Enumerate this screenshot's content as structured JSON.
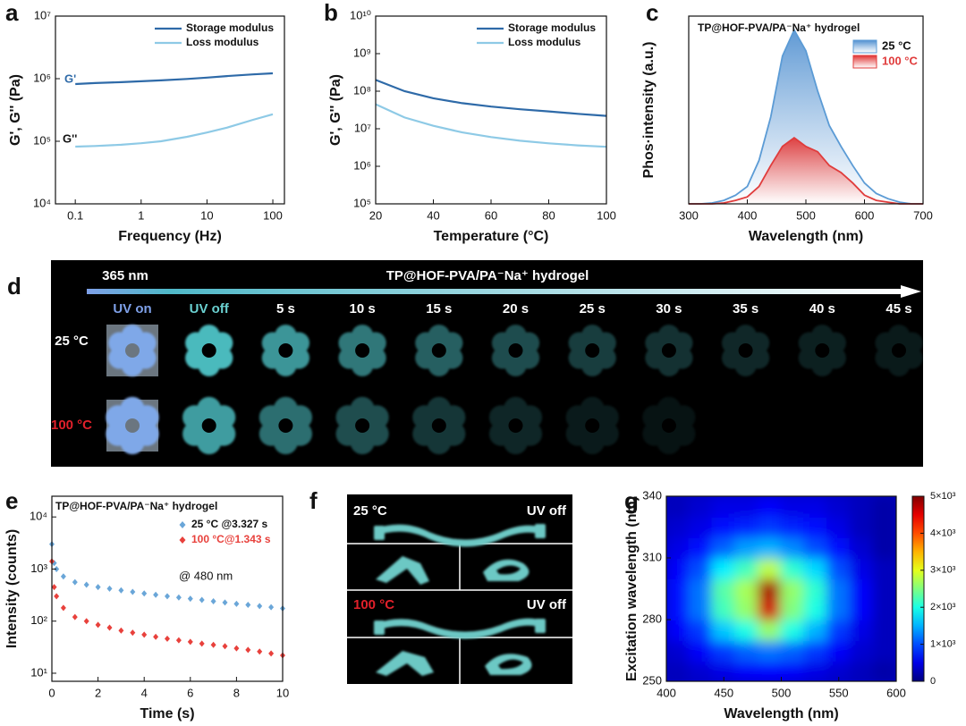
{
  "chart_data": [
    {
      "type": "line",
      "label": "a",
      "xlabel": "Frequency (Hz)",
      "ylabel": "G', G'' (Pa)",
      "xscale": "log",
      "yscale": "log",
      "xlim": [
        0.05,
        150
      ],
      "ylim": [
        10000,
        10000000
      ],
      "xticks": [
        0.1,
        1,
        10,
        100
      ],
      "yticks": [
        {
          "value": 10000,
          "label": "10⁴"
        },
        {
          "value": 100000,
          "label": "10⁵"
        },
        {
          "value": 1000000,
          "label": "10⁶"
        },
        {
          "value": 10000000,
          "label": "10⁷"
        }
      ],
      "annotations": [
        "G'",
        "G''"
      ],
      "x": [
        0.1,
        0.2,
        0.5,
        1,
        2,
        5,
        10,
        20,
        50,
        100
      ],
      "series": [
        {
          "name": "Storage modulus",
          "color": "#2e6aa8",
          "values": [
            820000,
            850000,
            880000,
            910000,
            940000,
            990000,
            1040000,
            1100000,
            1170000,
            1220000
          ]
        },
        {
          "name": "Loss modulus",
          "color": "#8ecae6",
          "values": [
            82000,
            84000,
            88000,
            93000,
            100000,
            118000,
            138000,
            165000,
            220000,
            270000
          ]
        }
      ]
    },
    {
      "type": "line",
      "label": "b",
      "xlabel": "Temperature (°C)",
      "ylabel": "G', G'' (Pa)",
      "yscale": "log",
      "xlim": [
        20,
        100
      ],
      "ylim": [
        100000,
        10000000000
      ],
      "xticks": [
        20,
        40,
        60,
        80,
        100
      ],
      "yticks": [
        {
          "value": 100000,
          "label": "10⁵"
        },
        {
          "value": 1000000,
          "label": "10⁶"
        },
        {
          "value": 10000000,
          "label": "10⁷"
        },
        {
          "value": 100000000,
          "label": "10⁸"
        },
        {
          "value": 1000000000,
          "label": "10⁹"
        },
        {
          "value": 10000000000,
          "label": "10¹⁰"
        }
      ],
      "x": [
        20,
        30,
        40,
        50,
        60,
        70,
        80,
        90,
        100
      ],
      "series": [
        {
          "name": "Storage modulus",
          "color": "#2e6aa8",
          "values": [
            200000000,
            100000000,
            65000000,
            48000000,
            39000000,
            33000000,
            29000000,
            25000000,
            22000000
          ]
        },
        {
          "name": "Loss modulus",
          "color": "#8ecae6",
          "values": [
            45000000,
            20000000,
            12000000,
            8000000,
            6000000,
            4800000,
            4100000,
            3600000,
            3300000
          ]
        }
      ]
    },
    {
      "type": "area",
      "label": "c",
      "title": "TP@HOF-PVA/PA⁻Na⁺ hydrogel",
      "xlabel": "Wavelength (nm)",
      "ylabel": "Phos·intensity (a.u.)",
      "xlim": [
        300,
        700
      ],
      "ylim": [
        0,
        1.08
      ],
      "xticks": [
        300,
        400,
        500,
        600,
        700
      ],
      "x": [
        300,
        320,
        340,
        360,
        380,
        400,
        420,
        440,
        460,
        480,
        500,
        520,
        540,
        560,
        580,
        600,
        620,
        640,
        660,
        680,
        700
      ],
      "series": [
        {
          "name": "25 °C",
          "color": "#5b9bd5",
          "values": [
            0,
            0,
            0.005,
            0.02,
            0.05,
            0.1,
            0.25,
            0.5,
            0.85,
            1.0,
            0.88,
            0.65,
            0.45,
            0.33,
            0.22,
            0.12,
            0.06,
            0.03,
            0.01,
            0,
            0
          ]
        },
        {
          "name": "100 °C",
          "color": "#e03c3c",
          "values": [
            0,
            0,
            0,
            0.005,
            0.02,
            0.04,
            0.1,
            0.22,
            0.33,
            0.38,
            0.33,
            0.3,
            0.22,
            0.18,
            0.12,
            0.05,
            0.02,
            0.01,
            0,
            0,
            0
          ]
        }
      ]
    },
    {
      "type": "scatter",
      "label": "e",
      "title": "TP@HOF-PVA/PA⁻Na⁺ hydrogel",
      "xlabel": "Time (s)",
      "ylabel": "Intensity (counts)",
      "yscale": "log",
      "xlim": [
        0,
        10
      ],
      "ylim": [
        7,
        25000
      ],
      "xticks": [
        0,
        2,
        4,
        6,
        8,
        10
      ],
      "yticks": [
        {
          "value": 10,
          "label": "10¹"
        },
        {
          "value": 100,
          "label": "10²"
        },
        {
          "value": 1000,
          "label": "10³"
        },
        {
          "value": 10000,
          "label": "10⁴"
        }
      ],
      "annotations": [
        "@ 480 nm"
      ],
      "x": [
        0,
        0.1,
        0.2,
        0.5,
        1,
        1.5,
        2,
        2.5,
        3,
        3.5,
        4,
        4.5,
        5,
        5.5,
        6,
        6.5,
        7,
        7.5,
        8,
        8.5,
        9,
        9.5,
        10
      ],
      "series": [
        {
          "name": "25 °C  @3.327 s",
          "color": "#6aa6d8",
          "values": [
            3000,
            1300,
            1000,
            720,
            560,
            500,
            450,
            420,
            390,
            365,
            340,
            320,
            300,
            285,
            270,
            255,
            240,
            228,
            215,
            205,
            195,
            185,
            175
          ]
        },
        {
          "name": "100 °C@1.343 s",
          "color": "#e8413c",
          "values": [
            1400,
            450,
            300,
            180,
            120,
            100,
            85,
            75,
            66,
            60,
            55,
            50,
            46,
            43,
            40,
            37,
            35,
            33,
            30,
            28,
            26,
            24,
            22
          ]
        }
      ]
    },
    {
      "type": "heatmap",
      "label": "g",
      "xlabel": "Wavelength (nm)",
      "ylabel": "Excitation wavelength (nm)",
      "xlim": [
        400,
        600
      ],
      "ylim": [
        250,
        340
      ],
      "xticks": [
        400,
        450,
        500,
        550,
        600
      ],
      "yticks": [
        250,
        280,
        310,
        340
      ],
      "colormap": "jet",
      "colorbar_lim": [
        0,
        5000
      ],
      "colorbar_ticks": [
        0,
        {
          "value": 1000,
          "label": "1×10³"
        },
        {
          "value": 2000,
          "label": "2×10³"
        },
        {
          "value": 3000,
          "label": "3×10³"
        },
        {
          "value": 4000,
          "label": "4×10³"
        },
        {
          "value": 5000,
          "label": "5×10³"
        }
      ],
      "x": [
        410,
        430,
        450,
        470,
        490,
        510,
        530,
        550,
        570,
        590
      ],
      "y": [
        255,
        265,
        275,
        285,
        295,
        305,
        315,
        325,
        335
      ],
      "z": [
        [
          300,
          400,
          500,
          600,
          650,
          600,
          500,
          400,
          300,
          200
        ],
        [
          400,
          600,
          900,
          1100,
          1200,
          1100,
          900,
          600,
          400,
          300
        ],
        [
          600,
          900,
          1600,
          2000,
          2600,
          2000,
          1500,
          900,
          500,
          300
        ],
        [
          700,
          1200,
          2200,
          2600,
          4600,
          2500,
          2000,
          1200,
          600,
          300
        ],
        [
          700,
          1200,
          2300,
          2700,
          4800,
          2600,
          2100,
          1200,
          600,
          300
        ],
        [
          600,
          1000,
          1800,
          2200,
          2800,
          2100,
          1700,
          1000,
          500,
          300
        ],
        [
          500,
          700,
          1100,
          1400,
          1500,
          1300,
          1000,
          700,
          400,
          200
        ],
        [
          400,
          500,
          700,
          800,
          900,
          800,
          700,
          500,
          300,
          200
        ],
        [
          300,
          400,
          500,
          500,
          600,
          500,
          500,
          400,
          300,
          200
        ]
      ]
    }
  ],
  "photo_panels": {
    "d": {
      "label": "d",
      "wavelength": "365 nm",
      "title": "TP@HOF-PVA/PA⁻Na⁺ hydrogel",
      "columns": [
        "UV on",
        "UV off",
        "5 s",
        "10 s",
        "15 s",
        "20 s",
        "25 s",
        "30 s",
        "35 s",
        "40 s",
        "45 s"
      ],
      "rows": [
        "25 °C",
        "100 °C"
      ]
    },
    "f": {
      "label": "f",
      "rows": [
        {
          "temp": "25 °C",
          "state": "UV off"
        },
        {
          "temp": "100 °C",
          "state": "UV off"
        }
      ]
    }
  }
}
